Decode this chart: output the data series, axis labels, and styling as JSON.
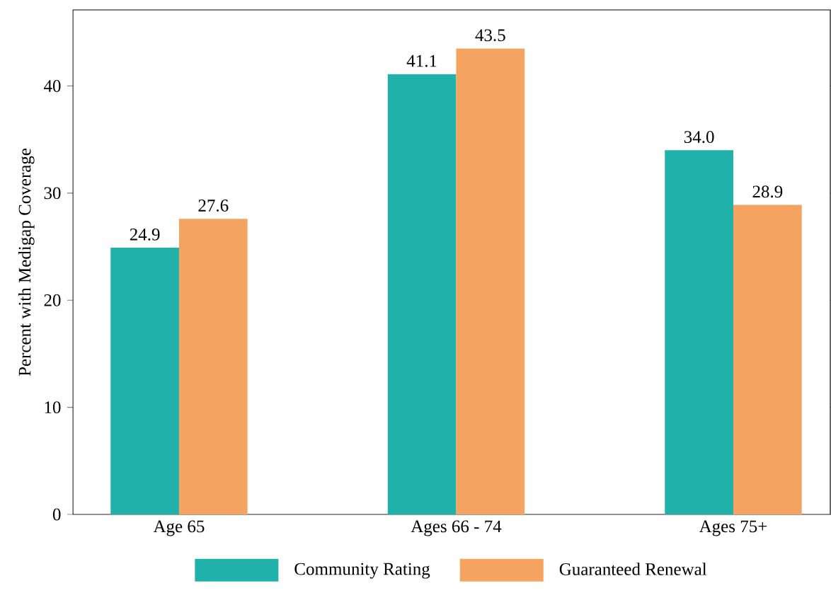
{
  "chart_data": {
    "type": "bar",
    "ylabel": "Percent with Medigap Coverage",
    "categories": [
      "Age 65",
      "Ages 66 - 74",
      "Ages 75+"
    ],
    "series": [
      {
        "name": "Community Rating",
        "color": "#20b2aa",
        "values": [
          24.9,
          41.1,
          34.0
        ],
        "value_labels": [
          "24.9",
          "41.1",
          "34.0"
        ]
      },
      {
        "name": "Guaranteed Renewal",
        "color": "#f4a460",
        "values": [
          27.6,
          43.5,
          28.9
        ],
        "value_labels": [
          "27.6",
          "43.5",
          "28.9"
        ]
      }
    ],
    "ylim": [
      0,
      47.1
    ],
    "yticks": [
      0,
      10,
      20,
      30,
      40
    ],
    "legend": "bottom",
    "grid": false
  }
}
